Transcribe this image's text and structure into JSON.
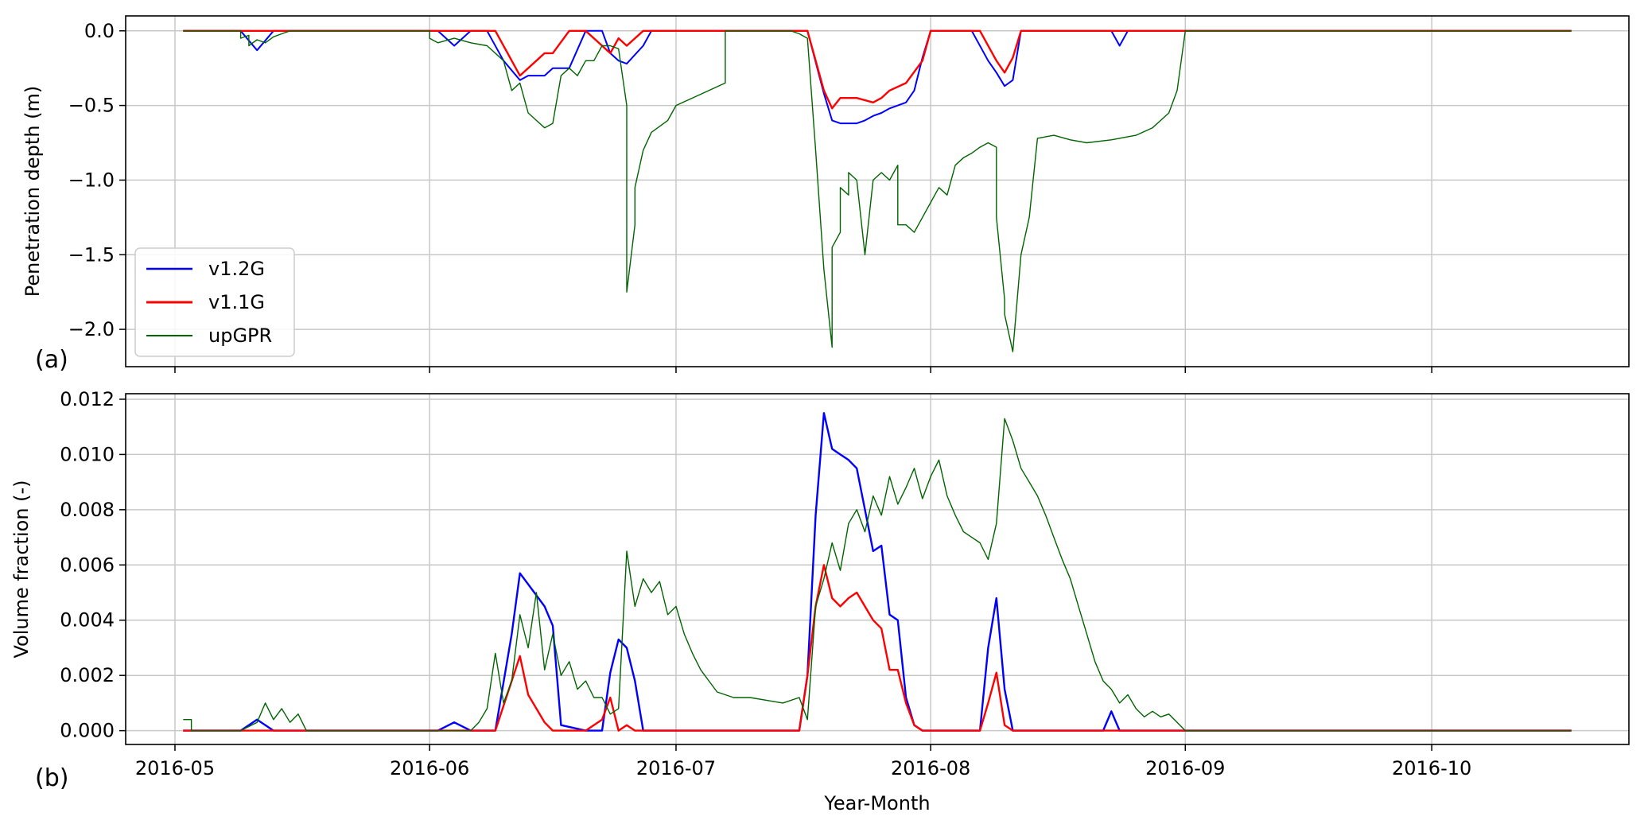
{
  "figure": {
    "xlabel": "Year-Month"
  },
  "chart_data": [
    {
      "type": "line",
      "panel_label": "(a)",
      "ylabel": "Penetration depth (m)",
      "ylim": [
        -2.25,
        0.1
      ],
      "xlim": [
        "2016-04-25",
        "2016-10-25"
      ],
      "x_ticks": [
        "2016-05-01",
        "2016-06-01",
        "2016-07-01",
        "2016-08-01",
        "2016-09-01",
        "2016-10-01"
      ],
      "x_tick_labels": [
        "2016-05",
        "2016-06",
        "2016-07",
        "2016-08",
        "2016-09",
        "2016-10"
      ],
      "y_ticks": [
        0.0,
        -0.5,
        -1.0,
        -1.5,
        -2.0
      ],
      "y_tick_labels": [
        "0.0",
        "−0.5",
        "−1.0",
        "−1.5",
        "−2.0"
      ],
      "grid": true,
      "legend": "lower-left",
      "series": [
        {
          "name": "v1.2G",
          "color": "#0000ff",
          "width": 2,
          "x": [
            "2016-05-02",
            "2016-05-09",
            "2016-05-11",
            "2016-05-13",
            "2016-06-02",
            "2016-06-04",
            "2016-06-06",
            "2016-06-08",
            "2016-06-10",
            "2016-06-12",
            "2016-06-13",
            "2016-06-15",
            "2016-06-16",
            "2016-06-18",
            "2016-06-20",
            "2016-06-22",
            "2016-06-23",
            "2016-06-24",
            "2016-06-25",
            "2016-06-27",
            "2016-06-28",
            "2016-07-17",
            "2016-07-19",
            "2016-07-20",
            "2016-07-21",
            "2016-07-23",
            "2016-07-24",
            "2016-07-25",
            "2016-07-26",
            "2016-07-27",
            "2016-07-28",
            "2016-07-29",
            "2016-07-30",
            "2016-07-31",
            "2016-08-01",
            "2016-08-02",
            "2016-08-06",
            "2016-08-08",
            "2016-08-09",
            "2016-08-10",
            "2016-08-11",
            "2016-08-12",
            "2016-08-13",
            "2016-08-23",
            "2016-08-24",
            "2016-08-25",
            "2016-10-18"
          ],
          "y": [
            0,
            0,
            -0.13,
            0,
            0,
            -0.1,
            0,
            0,
            -0.2,
            -0.33,
            -0.3,
            -0.3,
            -0.25,
            -0.25,
            0,
            0,
            -0.15,
            -0.2,
            -0.22,
            -0.1,
            0,
            0,
            -0.42,
            -0.6,
            -0.62,
            -0.62,
            -0.6,
            -0.57,
            -0.55,
            -0.52,
            -0.5,
            -0.48,
            -0.4,
            -0.18,
            0,
            0,
            0,
            -0.2,
            -0.28,
            -0.37,
            -0.33,
            0,
            0,
            0,
            -0.1,
            0,
            0
          ]
        },
        {
          "name": "v1.1G",
          "color": "#ff0000",
          "width": 2.4,
          "x": [
            "2016-05-02",
            "2016-06-09",
            "2016-06-12",
            "2016-06-14",
            "2016-06-15",
            "2016-06-16",
            "2016-06-18",
            "2016-06-20",
            "2016-06-22",
            "2016-06-23",
            "2016-06-24",
            "2016-06-25",
            "2016-06-27",
            "2016-07-17",
            "2016-07-19",
            "2016-07-20",
            "2016-07-21",
            "2016-07-23",
            "2016-07-25",
            "2016-07-26",
            "2016-07-27",
            "2016-07-29",
            "2016-07-31",
            "2016-08-01",
            "2016-08-07",
            "2016-08-09",
            "2016-08-10",
            "2016-08-11",
            "2016-08-12",
            "2016-10-18"
          ],
          "y": [
            0,
            0,
            -0.3,
            -0.2,
            -0.15,
            -0.15,
            0,
            0,
            -0.1,
            -0.15,
            -0.05,
            -0.1,
            0,
            0,
            -0.4,
            -0.52,
            -0.45,
            -0.45,
            -0.48,
            -0.45,
            -0.4,
            -0.35,
            -0.2,
            0,
            0,
            -0.2,
            -0.28,
            -0.18,
            0,
            0
          ]
        },
        {
          "name": "upGPR",
          "color": "#006400",
          "width": 1.4,
          "x": [
            "2016-05-02",
            "2016-05-09",
            "2016-05-09",
            "2016-05-10",
            "2016-05-10",
            "2016-05-11",
            "2016-05-12",
            "2016-05-13",
            "2016-05-14",
            "2016-05-15",
            "2016-05-16",
            "2016-06-01",
            "2016-06-01",
            "2016-06-02",
            "2016-06-04",
            "2016-06-06",
            "2016-06-08",
            "2016-06-10",
            "2016-06-11",
            "2016-06-12",
            "2016-06-13",
            "2016-06-14",
            "2016-06-15",
            "2016-06-16",
            "2016-06-17",
            "2016-06-18",
            "2016-06-19",
            "2016-06-20",
            "2016-06-21",
            "2016-06-22",
            "2016-06-23",
            "2016-06-24",
            "2016-06-25",
            "2016-06-25",
            "2016-06-26",
            "2016-06-26",
            "2016-06-27",
            "2016-06-28",
            "2016-06-30",
            "2016-07-01",
            "2016-07-03",
            "2016-07-05",
            "2016-07-07",
            "2016-07-07",
            "2016-07-15",
            "2016-07-16",
            "2016-07-17",
            "2016-07-18",
            "2016-07-19",
            "2016-07-20",
            "2016-07-20",
            "2016-07-21",
            "2016-07-21",
            "2016-07-22",
            "2016-07-22",
            "2016-07-23",
            "2016-07-24",
            "2016-07-25",
            "2016-07-26",
            "2016-07-27",
            "2016-07-28",
            "2016-07-28",
            "2016-07-29",
            "2016-07-30",
            "2016-07-31",
            "2016-08-02",
            "2016-08-03",
            "2016-08-04",
            "2016-08-05",
            "2016-08-06",
            "2016-08-07",
            "2016-08-08",
            "2016-08-09",
            "2016-08-09",
            "2016-08-10",
            "2016-08-10",
            "2016-08-11",
            "2016-08-12",
            "2016-08-13",
            "2016-08-14",
            "2016-08-16",
            "2016-08-18",
            "2016-08-20",
            "2016-08-23",
            "2016-08-26",
            "2016-08-28",
            "2016-08-29",
            "2016-08-30",
            "2016-08-31",
            "2016-09-01",
            "2016-10-18"
          ],
          "y": [
            0,
            0,
            -0.05,
            -0.03,
            -0.1,
            -0.06,
            -0.08,
            -0.04,
            -0.02,
            0,
            0,
            0,
            -0.05,
            -0.08,
            -0.05,
            -0.08,
            -0.1,
            -0.2,
            -0.4,
            -0.35,
            -0.55,
            -0.6,
            -0.65,
            -0.62,
            -0.3,
            -0.25,
            -0.3,
            -0.2,
            -0.2,
            -0.1,
            -0.1,
            -0.12,
            -0.5,
            -1.75,
            -1.3,
            -1.05,
            -0.8,
            -0.68,
            -0.6,
            -0.5,
            -0.45,
            -0.4,
            -0.35,
            0,
            0,
            -0.02,
            -0.05,
            -0.8,
            -1.6,
            -2.12,
            -1.45,
            -1.35,
            -1.05,
            -1.1,
            -0.95,
            -1.0,
            -1.5,
            -1.0,
            -0.95,
            -1.0,
            -0.9,
            -1.3,
            -1.3,
            -1.35,
            -1.25,
            -1.05,
            -1.1,
            -0.9,
            -0.85,
            -0.82,
            -0.78,
            -0.75,
            -0.78,
            -1.25,
            -1.8,
            -1.9,
            -2.15,
            -1.5,
            -1.25,
            -0.72,
            -0.7,
            -0.73,
            -0.75,
            -0.73,
            -0.7,
            -0.65,
            -0.6,
            -0.55,
            -0.4,
            0,
            0
          ]
        }
      ]
    },
    {
      "type": "line",
      "panel_label": "(b)",
      "ylabel": "Volume fraction (-)",
      "ylim": [
        -0.0005,
        0.0122
      ],
      "xlim": [
        "2016-04-25",
        "2016-10-25"
      ],
      "x_ticks": [
        "2016-05-01",
        "2016-06-01",
        "2016-07-01",
        "2016-08-01",
        "2016-09-01",
        "2016-10-01"
      ],
      "x_tick_labels": [
        "2016-05",
        "2016-06",
        "2016-07",
        "2016-08",
        "2016-09",
        "2016-10"
      ],
      "y_ticks": [
        0.0,
        0.002,
        0.004,
        0.006,
        0.008,
        0.01,
        0.012
      ],
      "y_tick_labels": [
        "0.000",
        "0.002",
        "0.004",
        "0.006",
        "0.008",
        "0.010",
        "0.012"
      ],
      "grid": true,
      "series": [
        {
          "name": "v1.2G",
          "color": "#0000ff",
          "width": 2.4,
          "x": [
            "2016-05-02",
            "2016-05-09",
            "2016-05-11",
            "2016-05-13",
            "2016-06-02",
            "2016-06-04",
            "2016-06-06",
            "2016-06-09",
            "2016-06-11",
            "2016-06-12",
            "2016-06-13",
            "2016-06-15",
            "2016-06-16",
            "2016-06-17",
            "2016-06-20",
            "2016-06-22",
            "2016-06-23",
            "2016-06-24",
            "2016-06-25",
            "2016-06-26",
            "2016-06-27",
            "2016-07-16",
            "2016-07-17",
            "2016-07-18",
            "2016-07-19",
            "2016-07-20",
            "2016-07-21",
            "2016-07-22",
            "2016-07-23",
            "2016-07-24",
            "2016-07-25",
            "2016-07-26",
            "2016-07-27",
            "2016-07-28",
            "2016-07-29",
            "2016-07-30",
            "2016-07-31",
            "2016-08-01",
            "2016-08-07",
            "2016-08-08",
            "2016-08-09",
            "2016-08-10",
            "2016-08-11",
            "2016-08-22",
            "2016-08-23",
            "2016-08-24",
            "2016-10-18"
          ],
          "y": [
            0,
            0,
            0.0004,
            0,
            0,
            0.0003,
            0,
            0,
            0.0035,
            0.0057,
            0.0053,
            0.0045,
            0.0038,
            0.0002,
            0,
            0,
            0.0021,
            0.0033,
            0.003,
            0.0018,
            0,
            0,
            0.002,
            0.0078,
            0.0115,
            0.0102,
            0.01,
            0.0098,
            0.0095,
            0.008,
            0.0065,
            0.0067,
            0.0042,
            0.004,
            0.0012,
            0.0002,
            0,
            0,
            0,
            0.003,
            0.0048,
            0.0015,
            0,
            0,
            0.0007,
            0,
            0
          ]
        },
        {
          "name": "v1.1G",
          "color": "#ff0000",
          "width": 2.4,
          "x": [
            "2016-05-02",
            "2016-06-09",
            "2016-06-11",
            "2016-06-12",
            "2016-06-13",
            "2016-06-15",
            "2016-06-16",
            "2016-06-20",
            "2016-06-22",
            "2016-06-23",
            "2016-06-24",
            "2016-06-25",
            "2016-06-26",
            "2016-07-16",
            "2016-07-17",
            "2016-07-18",
            "2016-07-19",
            "2016-07-20",
            "2016-07-21",
            "2016-07-22",
            "2016-07-23",
            "2016-07-24",
            "2016-07-25",
            "2016-07-26",
            "2016-07-27",
            "2016-07-28",
            "2016-07-29",
            "2016-07-30",
            "2016-07-31",
            "2016-08-07",
            "2016-08-08",
            "2016-08-09",
            "2016-08-10",
            "2016-08-11",
            "2016-10-18"
          ],
          "y": [
            0,
            0,
            0.0018,
            0.0027,
            0.0013,
            0.0003,
            0,
            0,
            0.0004,
            0.0012,
            0,
            0.0002,
            0,
            0,
            0.002,
            0.0045,
            0.006,
            0.0048,
            0.0045,
            0.0048,
            0.005,
            0.0045,
            0.004,
            0.0037,
            0.0022,
            0.0022,
            0.001,
            0.0002,
            0,
            0,
            0.001,
            0.0021,
            0.0002,
            0,
            0
          ]
        },
        {
          "name": "upGPR",
          "color": "#006400",
          "width": 1.4,
          "x": [
            "2016-05-02",
            "2016-05-03",
            "2016-05-03",
            "2016-05-04",
            "2016-05-06",
            "2016-05-09",
            "2016-05-11",
            "2016-05-12",
            "2016-05-13",
            "2016-05-14",
            "2016-05-15",
            "2016-05-16",
            "2016-05-17",
            "2016-06-02",
            "2016-06-04",
            "2016-06-06",
            "2016-06-07",
            "2016-06-08",
            "2016-06-09",
            "2016-06-10",
            "2016-06-11",
            "2016-06-12",
            "2016-06-13",
            "2016-06-14",
            "2016-06-15",
            "2016-06-16",
            "2016-06-17",
            "2016-06-18",
            "2016-06-19",
            "2016-06-20",
            "2016-06-21",
            "2016-06-22",
            "2016-06-23",
            "2016-06-24",
            "2016-06-25",
            "2016-06-26",
            "2016-06-27",
            "2016-06-28",
            "2016-06-29",
            "2016-06-30",
            "2016-07-01",
            "2016-07-02",
            "2016-07-03",
            "2016-07-04",
            "2016-07-06",
            "2016-07-08",
            "2016-07-10",
            "2016-07-12",
            "2016-07-14",
            "2016-07-16",
            "2016-07-17",
            "2016-07-18",
            "2016-07-19",
            "2016-07-20",
            "2016-07-21",
            "2016-07-22",
            "2016-07-23",
            "2016-07-24",
            "2016-07-25",
            "2016-07-26",
            "2016-07-27",
            "2016-07-28",
            "2016-07-29",
            "2016-07-30",
            "2016-07-31",
            "2016-08-01",
            "2016-08-02",
            "2016-08-03",
            "2016-08-04",
            "2016-08-05",
            "2016-08-06",
            "2016-08-07",
            "2016-08-08",
            "2016-08-09",
            "2016-08-10",
            "2016-08-11",
            "2016-08-12",
            "2016-08-13",
            "2016-08-14",
            "2016-08-15",
            "2016-08-16",
            "2016-08-17",
            "2016-08-18",
            "2016-08-19",
            "2016-08-20",
            "2016-08-21",
            "2016-08-22",
            "2016-08-23",
            "2016-08-24",
            "2016-08-25",
            "2016-08-26",
            "2016-08-27",
            "2016-08-28",
            "2016-08-29",
            "2016-08-30",
            "2016-08-31",
            "2016-09-01",
            "2016-10-18"
          ],
          "y": [
            0.0004,
            0.0004,
            0,
            0,
            0,
            0,
            0.0003,
            0.001,
            0.0004,
            0.0008,
            0.0003,
            0.0006,
            0,
            0,
            0,
            0,
            0.0003,
            0.0008,
            0.0028,
            0.001,
            0.0018,
            0.0042,
            0.003,
            0.005,
            0.0022,
            0.0035,
            0.002,
            0.0025,
            0.0015,
            0.0018,
            0.0012,
            0.0012,
            0.0006,
            0.0008,
            0.0065,
            0.0045,
            0.0055,
            0.005,
            0.0054,
            0.0042,
            0.0045,
            0.0035,
            0.0028,
            0.0022,
            0.0014,
            0.0012,
            0.0012,
            0.0011,
            0.001,
            0.0012,
            0.0004,
            0.0045,
            0.0055,
            0.0068,
            0.0058,
            0.0075,
            0.008,
            0.0072,
            0.0085,
            0.0078,
            0.0092,
            0.0082,
            0.0088,
            0.0095,
            0.0084,
            0.0092,
            0.0098,
            0.0085,
            0.0078,
            0.0072,
            0.007,
            0.0068,
            0.0062,
            0.0075,
            0.0113,
            0.0105,
            0.0095,
            0.009,
            0.0085,
            0.0078,
            0.007,
            0.0062,
            0.0055,
            0.0045,
            0.0035,
            0.0025,
            0.0018,
            0.0015,
            0.001,
            0.0013,
            0.0008,
            0.0005,
            0.0007,
            0.0005,
            0.0006,
            0.0003,
            0,
            0
          ]
        }
      ]
    }
  ]
}
